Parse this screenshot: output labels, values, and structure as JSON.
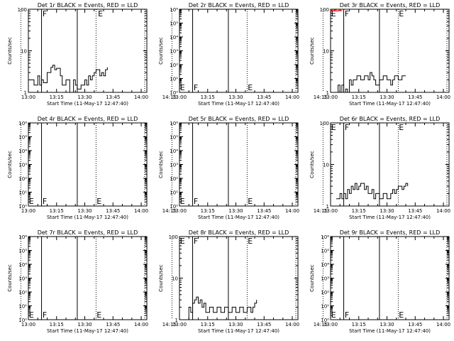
{
  "figure": {
    "x_tick_labels": [
      "13:00",
      "13:15",
      "13:30",
      "13:45",
      "14:00",
      "14:15"
    ],
    "time_range_min": [
      12,
      75
    ]
  },
  "chart_data": [
    {
      "type": "line",
      "title": "Det 1r BLACK = Events, RED = LLD",
      "xlabel": "Start Time (11-May-17 12:47:40)",
      "ylabel": "Counts/sec",
      "yscale": "log",
      "ylim": [
        1,
        100
      ],
      "y_tick_labels": [
        "1",
        "10",
        "100"
      ],
      "dotted_lines_min": [
        8,
        48
      ],
      "solid_lines_min": [
        19,
        38
      ],
      "flags": [
        {
          "text": "F",
          "x": 19.5
        },
        {
          "text": "E",
          "x": 49
        }
      ],
      "series": [
        {
          "color": "#000000",
          "x": [
            13,
            15,
            17,
            18,
            19,
            20,
            22,
            24,
            25,
            26,
            27,
            29,
            30,
            32,
            34,
            36,
            37,
            38,
            40,
            42,
            43,
            44,
            45,
            46,
            47,
            48,
            50,
            51,
            52,
            53,
            54
          ],
          "y": [
            2,
            1.5,
            2.5,
            1.5,
            2,
            1.7,
            3,
            4,
            4.5,
            3.5,
            3.8,
            2.5,
            1.5,
            2,
            1,
            2,
            1.5,
            1.2,
            1.5,
            2,
            1.5,
            2.5,
            2,
            2.5,
            3,
            3.5,
            2.5,
            3,
            2.5,
            3.5,
            4
          ]
        }
      ]
    },
    {
      "type": "line",
      "title": "Det 2r BLACK = Events, RED = LLD",
      "xlabel": "Start Time (11-May-17 12:47:40)",
      "ylabel": "Counts/sec",
      "yscale": "log",
      "ylim": [
        1,
        1000000
      ],
      "y_tick_labels": [
        "10⁰",
        "10¹",
        "10²",
        "10³",
        "10⁴",
        "10⁵",
        "10⁶"
      ],
      "dotted_lines_min": [
        8,
        48
      ],
      "solid_lines_min": [
        19,
        38
      ],
      "flags": [
        {
          "text": "E",
          "x": 12.3
        },
        {
          "text": "F",
          "x": 19.5
        },
        {
          "text": "E",
          "x": 48.3
        }
      ],
      "series": []
    },
    {
      "type": "line",
      "title": "Det 3r BLACK = Events, RED = LLD",
      "xlabel": "Start Time (11-May-17 12:47:40)",
      "ylabel": "Counts/sec",
      "yscale": "log",
      "ylim": [
        1,
        100
      ],
      "y_tick_labels": [
        "1",
        "10",
        "100"
      ],
      "dotted_lines_min": [
        8,
        48
      ],
      "solid_lines_min": [
        19,
        38
      ],
      "flags": [
        {
          "text": "E",
          "x": 12.3
        },
        {
          "text": "F",
          "x": 19.5
        },
        {
          "text": "E",
          "x": 48.3
        }
      ],
      "series": [
        {
          "color": "#000000",
          "x": [
            15,
            16,
            17,
            18,
            19,
            20,
            21,
            22,
            23,
            24,
            26,
            28,
            30,
            32,
            33,
            34,
            35,
            36,
            38,
            40,
            42,
            44,
            45,
            46,
            48,
            50,
            52
          ],
          "y": [
            1,
            1.5,
            1,
            1.5,
            1,
            1.2,
            1,
            2,
            1.5,
            2,
            2.5,
            2,
            2.5,
            2,
            3,
            2.5,
            2,
            1.5,
            2,
            2.5,
            2,
            1.5,
            2,
            2.5,
            2,
            2.5,
            2.5
          ]
        },
        {
          "color": "#ff0000",
          "x": [
            12,
            13,
            14,
            15,
            16,
            17,
            18
          ],
          "y": [
            95,
            92,
            96,
            90,
            94,
            93,
            95
          ]
        }
      ]
    },
    {
      "type": "line",
      "title": "Det 4r BLACK = Events, RED = LLD",
      "xlabel": "Start Time (11-May-17 12:47:40)",
      "ylabel": "Counts/sec",
      "yscale": "log",
      "ylim": [
        1,
        1000000
      ],
      "y_tick_labels": [
        "10⁰",
        "10¹",
        "10²",
        "10³",
        "10⁴",
        "10⁵",
        "10⁶"
      ],
      "dotted_lines_min": [
        8,
        48
      ],
      "solid_lines_min": [
        19,
        38
      ],
      "flags": [
        {
          "text": "E",
          "x": 12.3
        },
        {
          "text": "F",
          "x": 19.5
        },
        {
          "text": "E",
          "x": 48.3
        }
      ],
      "series": []
    },
    {
      "type": "line",
      "title": "Det 5r BLACK = Events, RED = LLD",
      "xlabel": "Start Time (11-May-17 12:47:40)",
      "ylabel": "Counts/sec",
      "yscale": "log",
      "ylim": [
        1,
        1000000
      ],
      "y_tick_labels": [
        "10⁰",
        "10¹",
        "10²",
        "10³",
        "10⁴",
        "10⁵",
        "10⁶"
      ],
      "dotted_lines_min": [
        8,
        48
      ],
      "solid_lines_min": [
        19,
        38
      ],
      "flags": [
        {
          "text": "E",
          "x": 12.3
        },
        {
          "text": "F",
          "x": 19.5
        },
        {
          "text": "E",
          "x": 48.3
        }
      ],
      "series": []
    },
    {
      "type": "line",
      "title": "Det 6r BLACK = Events, RED = LLD",
      "xlabel": "Start Time (11-May-17 12:47:40)",
      "ylabel": "Counts/sec",
      "yscale": "log",
      "ylim": [
        1,
        100
      ],
      "y_tick_labels": [
        "1",
        "10",
        "100"
      ],
      "dotted_lines_min": [
        8,
        48
      ],
      "solid_lines_min": [
        19,
        38
      ],
      "flags": [
        {
          "text": "E",
          "x": 12.3
        },
        {
          "text": "F",
          "x": 19.5
        },
        {
          "text": "E",
          "x": 48.3
        }
      ],
      "series": [
        {
          "color": "#000000",
          "x": [
            15,
            17,
            18,
            19,
            20,
            21,
            22,
            23,
            24,
            25,
            26,
            27,
            28,
            30,
            31,
            32,
            34,
            35,
            36,
            38,
            40,
            42,
            44,
            45,
            46,
            47,
            48,
            50,
            51,
            52,
            53
          ],
          "y": [
            1.5,
            2,
            1.5,
            2,
            1.5,
            2.5,
            2,
            3,
            2.5,
            3.5,
            2.5,
            3,
            3.5,
            2.5,
            3,
            2,
            2.5,
            1.5,
            2,
            1.5,
            2,
            1.5,
            2,
            2.5,
            2,
            2.5,
            3,
            2.5,
            3,
            3.5,
            3
          ]
        }
      ]
    },
    {
      "type": "line",
      "title": "Det 7r BLACK = Events, RED = LLD",
      "xlabel": "Start Time (11-May-17 12:47:40)",
      "ylabel": "Counts/sec",
      "yscale": "log",
      "ylim": [
        1,
        1000000
      ],
      "y_tick_labels": [
        "10⁰",
        "10¹",
        "10²",
        "10³",
        "10⁴",
        "10⁵",
        "10⁶"
      ],
      "dotted_lines_min": [
        8,
        48
      ],
      "solid_lines_min": [
        19,
        38
      ],
      "flags": [
        {
          "text": "E",
          "x": 12.3
        },
        {
          "text": "F",
          "x": 19.5
        },
        {
          "text": "E",
          "x": 48.3
        }
      ],
      "series": []
    },
    {
      "type": "line",
      "title": "Det 8r BLACK = Events, RED = LLD",
      "xlabel": "Start Time (11-May-17 12:47:40)",
      "ylabel": "Counts/sec",
      "yscale": "log",
      "ylim": [
        1,
        100
      ],
      "y_tick_labels": [
        "1",
        "10",
        "100"
      ],
      "dotted_lines_min": [
        8,
        48
      ],
      "solid_lines_min": [
        19,
        38
      ],
      "flags": [
        {
          "text": "E",
          "x": 12.3
        },
        {
          "text": "F",
          "x": 19.5
        },
        {
          "text": "E",
          "x": 48.3
        }
      ],
      "series": [
        {
          "color": "#000000",
          "x": [
            15,
            17,
            18,
            19,
            20,
            21,
            22,
            23,
            24,
            25,
            26,
            28,
            30,
            32,
            34,
            36,
            38,
            40,
            42,
            44,
            46,
            48,
            50,
            51,
            52,
            53
          ],
          "y": [
            1,
            2,
            1.5,
            2.5,
            3,
            3.5,
            2.5,
            3,
            2,
            2.5,
            1.5,
            2,
            1.5,
            2,
            1.5,
            2,
            1.5,
            2,
            1.5,
            2,
            1.5,
            2,
            1.5,
            2,
            2.5,
            3
          ]
        }
      ]
    },
    {
      "type": "line",
      "title": "Det 9r BLACK = Events, RED = LLD",
      "xlabel": "Start Time (11-May-17 12:47:40)",
      "ylabel": "Counts/sec",
      "yscale": "log",
      "ylim": [
        1,
        1000000
      ],
      "y_tick_labels": [
        "10⁰",
        "10¹",
        "10²",
        "10³",
        "10⁴",
        "10⁵",
        "10⁶"
      ],
      "dotted_lines_min": [
        8,
        48
      ],
      "solid_lines_min": [
        19,
        38
      ],
      "flags": [
        {
          "text": "E",
          "x": 12.3
        },
        {
          "text": "F",
          "x": 19.5
        },
        {
          "text": "E",
          "x": 48.3
        }
      ],
      "series": []
    }
  ]
}
